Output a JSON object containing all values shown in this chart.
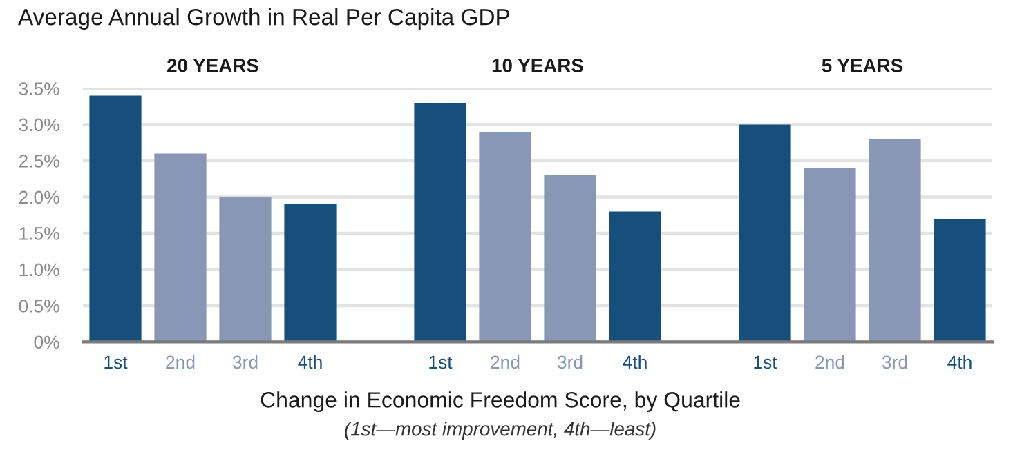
{
  "chart_data": {
    "type": "bar",
    "title": "Average Annual Growth in Real Per Capita GDP",
    "xlabel": "Change in Economic Freedom Score, by Quartile",
    "annotations": [
      "20 YEARS",
      "10 YEARS",
      "5 YEARS",
      "(1st—most improvement, 4th—least)"
    ],
    "categories": [
      "1st",
      "2nd",
      "3rd",
      "4th",
      null,
      "1st",
      "2nd",
      "3rd",
      "4th",
      null,
      "1st",
      "2nd",
      "3rd",
      "4th"
    ],
    "values": [
      3.4,
      2.6,
      2.0,
      1.9,
      null,
      3.3,
      2.9,
      2.3,
      1.8,
      null,
      3.0,
      2.4,
      2.8,
      1.7
    ],
    "colors": [
      "#174f7c",
      "#8797b5",
      "#8797b5",
      "#174f7c",
      null,
      "#174f7c",
      "#8797b5",
      "#8797b5",
      "#174f7c",
      null,
      "#174f7c",
      "#8797b5",
      "#8797b5",
      "#174f7c"
    ],
    "ylim": [
      0,
      3.5
    ],
    "yticks": [
      {
        "value": 0,
        "label": "0%"
      },
      {
        "value": 0.5,
        "label": "0.5%"
      },
      {
        "value": 1.0,
        "label": "1.0%"
      },
      {
        "value": 1.5,
        "label": "1.5%"
      },
      {
        "value": 2.0,
        "label": "2.0%"
      },
      {
        "value": 2.5,
        "label": "2.5%"
      },
      {
        "value": 3.0,
        "label": "3.0%"
      },
      {
        "value": 3.5,
        "label": "3.5%"
      }
    ],
    "grid": "y"
  }
}
